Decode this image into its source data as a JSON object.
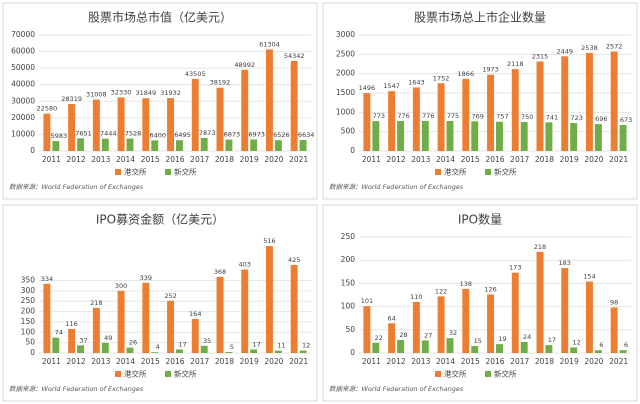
{
  "chart_data": [
    {
      "type": "bar",
      "title": "股票市场总市值（亿美元）",
      "source": "数据来源：World Federation of Exchanges",
      "categories": [
        "2011",
        "2012",
        "2013",
        "2014",
        "2015",
        "2016",
        "2017",
        "2018",
        "2019",
        "2020",
        "2021"
      ],
      "series": [
        {
          "name": "港交所",
          "color": "#ed7d31",
          "values": [
            22580,
            28319,
            31008,
            32330,
            31849,
            31932,
            43505,
            38192,
            48992,
            61304,
            54342
          ]
        },
        {
          "name": "新交所",
          "color": "#70ad47",
          "values": [
            5983,
            7651,
            7444,
            7528,
            6400,
            6495,
            7873,
            6873,
            6973,
            6526,
            6634
          ]
        }
      ],
      "ylim": [
        0,
        70000
      ],
      "yticks": [
        0,
        10000,
        20000,
        30000,
        40000,
        50000,
        60000,
        70000
      ],
      "grid": true
    },
    {
      "type": "bar",
      "title": "股票市场总上市企业数量",
      "source": "数据来源：World Federation of Exchanges",
      "categories": [
        "2011",
        "2012",
        "2013",
        "2014",
        "2015",
        "2016",
        "2017",
        "2018",
        "2019",
        "2020",
        "2021"
      ],
      "series": [
        {
          "name": "港交所",
          "color": "#ed7d31",
          "values": [
            1496,
            1547,
            1643,
            1752,
            1866,
            1973,
            2118,
            2315,
            2449,
            2538,
            2572
          ]
        },
        {
          "name": "新交所",
          "color": "#70ad47",
          "values": [
            773,
            776,
            776,
            775,
            769,
            757,
            750,
            741,
            723,
            696,
            673
          ]
        }
      ],
      "ylim": [
        0,
        3000
      ],
      "yticks": [
        0,
        500,
        1000,
        1500,
        2000,
        2500,
        3000
      ],
      "grid": true
    },
    {
      "type": "bar",
      "title": "IPO募资金额（亿美元）",
      "source": "数据来源：World Federation of Exchanges",
      "categories": [
        "2011",
        "2012",
        "2013",
        "2014",
        "2015",
        "2016",
        "2017",
        "2018",
        "2019",
        "2020",
        "2021"
      ],
      "series": [
        {
          "name": "港交所",
          "color": "#ed7d31",
          "values": [
            334,
            116,
            218,
            300,
            339,
            252,
            164,
            368,
            403,
            516,
            425
          ]
        },
        {
          "name": "新交所",
          "color": "#70ad47",
          "values": [
            74,
            37,
            49,
            26,
            4,
            17,
            35,
            5,
            17,
            11,
            12
          ]
        }
      ],
      "ylim": [
        0,
        560
      ],
      "yticks": [
        0,
        50,
        100,
        150,
        200,
        250,
        300,
        350
      ],
      "grid": true
    },
    {
      "type": "bar",
      "title": "IPO数量",
      "source": "数据来源：World Federation of Exchanges",
      "categories": [
        "2011",
        "2012",
        "2013",
        "2014",
        "2015",
        "2016",
        "2017",
        "2018",
        "2019",
        "2020",
        "2021"
      ],
      "series": [
        {
          "name": "港交所",
          "color": "#ed7d31",
          "values": [
            101,
            64,
            110,
            122,
            138,
            126,
            173,
            218,
            183,
            154,
            98
          ]
        },
        {
          "name": "新交所",
          "color": "#70ad47",
          "values": [
            22,
            28,
            27,
            32,
            15,
            19,
            24,
            17,
            12,
            6,
            6
          ]
        }
      ],
      "ylim": [
        0,
        250
      ],
      "yticks": [
        0,
        50,
        100,
        150,
        200,
        250
      ],
      "grid": true
    }
  ]
}
